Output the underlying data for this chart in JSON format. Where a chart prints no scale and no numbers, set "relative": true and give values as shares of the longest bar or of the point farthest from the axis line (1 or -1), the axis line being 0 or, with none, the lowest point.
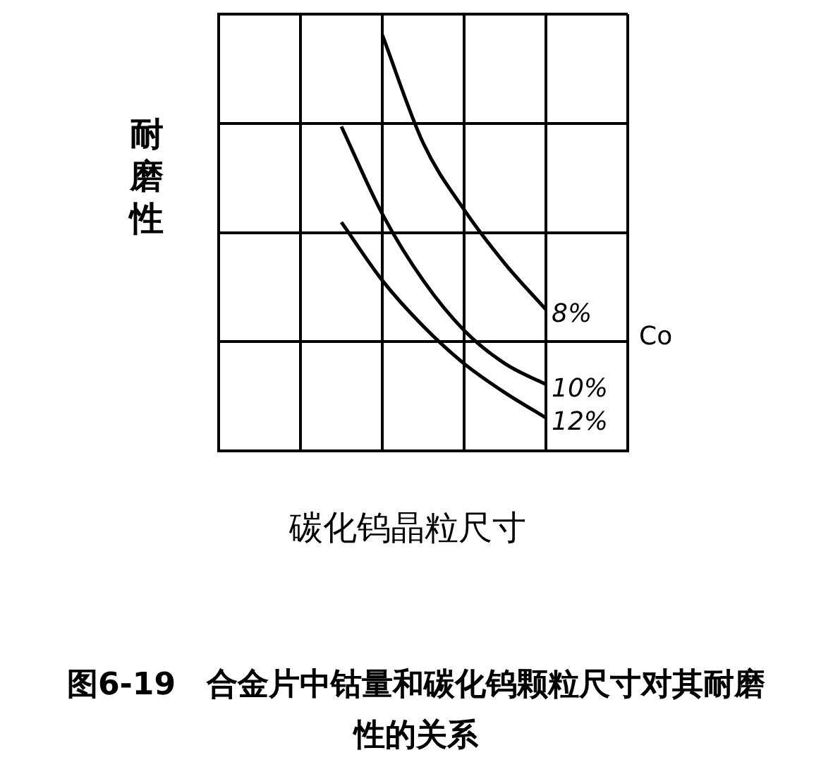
{
  "chart_data": {
    "type": "line",
    "relative": true,
    "title": "图6-19　合金片中钴量和碳化钨颗粒尺寸对其耐磨性的关系",
    "xlabel": "碳化钨晶粒尺寸",
    "ylabel": "耐磨性",
    "categories": [
      null,
      null,
      null,
      null,
      null,
      null,
      null,
      null,
      null,
      null,
      null
    ],
    "series": [
      {
        "name": "8%",
        "color": "#000000",
        "values": [
          null,
          null,
          null,
          null,
          1.0,
          0.74,
          0.58,
          0.45,
          0.34,
          null,
          null
        ]
      },
      {
        "name": "10%",
        "color": "#000000",
        "values": [
          null,
          null,
          null,
          0.78,
          0.57,
          0.41,
          0.29,
          0.21,
          0.16,
          null,
          null
        ]
      },
      {
        "name": "12%",
        "color": "#000000",
        "values": [
          null,
          null,
          null,
          0.55,
          0.41,
          0.3,
          0.21,
          0.14,
          0.08,
          null,
          null
        ]
      }
    ],
    "annotations": [
      "Co"
    ],
    "grid": true,
    "legend": false,
    "marker": "none",
    "line_style": "solid"
  }
}
